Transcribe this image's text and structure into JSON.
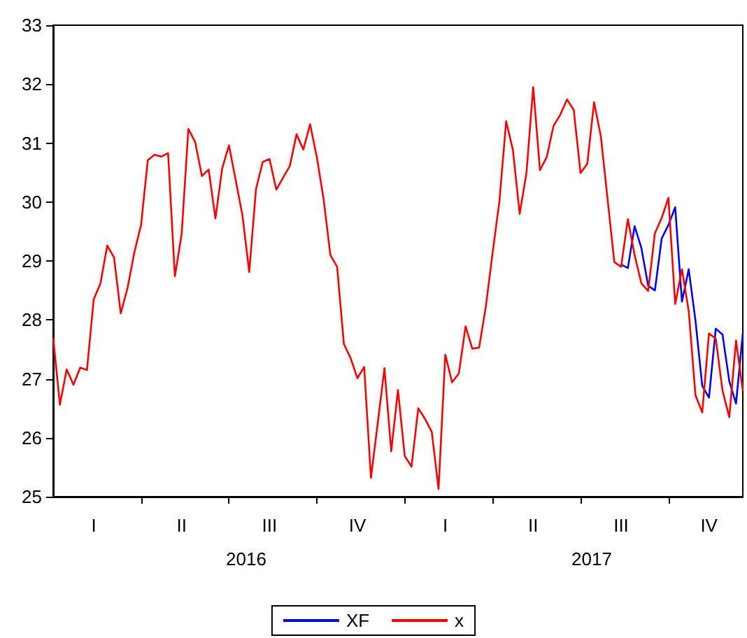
{
  "chart_data": {
    "type": "line",
    "categories": [
      null,
      null,
      null,
      null,
      null,
      null,
      "I",
      null,
      null,
      null,
      null,
      null,
      null,
      null,
      null,
      null,
      null,
      null,
      null,
      "II",
      null,
      null,
      null,
      null,
      null,
      null,
      null,
      null,
      null,
      null,
      null,
      null,
      "III",
      null,
      null,
      null,
      null,
      null,
      null,
      null,
      null,
      null,
      null,
      null,
      null,
      "IV",
      null,
      null,
      null,
      null,
      null,
      null,
      null,
      null,
      null,
      null,
      null,
      null,
      "I",
      null,
      null,
      null,
      null,
      null,
      null,
      null,
      null,
      null,
      null,
      null,
      null,
      "II",
      null,
      null,
      null,
      null,
      null,
      null,
      null,
      null,
      null,
      null,
      null,
      null,
      "III",
      null,
      null,
      null,
      null,
      null,
      null,
      null,
      null,
      null,
      null,
      null,
      null,
      "IV",
      null,
      null,
      null,
      null,
      null
    ],
    "series": [
      {
        "name": "XF",
        "color": "#0000ff",
        "values": [
          null,
          null,
          null,
          null,
          null,
          null,
          null,
          null,
          null,
          null,
          null,
          null,
          null,
          null,
          null,
          null,
          null,
          null,
          null,
          null,
          null,
          null,
          null,
          null,
          null,
          null,
          null,
          null,
          null,
          null,
          null,
          null,
          null,
          null,
          null,
          null,
          null,
          null,
          null,
          null,
          null,
          null,
          null,
          null,
          null,
          null,
          null,
          null,
          null,
          null,
          null,
          null,
          null,
          null,
          null,
          null,
          null,
          null,
          null,
          null,
          null,
          null,
          null,
          null,
          null,
          null,
          null,
          null,
          null,
          null,
          null,
          null,
          null,
          null,
          null,
          null,
          null,
          null,
          null,
          null,
          null,
          null,
          null,
          null,
          28.94,
          28.88,
          29.59,
          29.22,
          28.58,
          28.5,
          29.38,
          29.61,
          29.91,
          28.31,
          28.86,
          27.99,
          26.88,
          26.68,
          27.85,
          27.75,
          26.96,
          26.58,
          27.77
        ]
      },
      {
        "name": "x",
        "color": "#ff0000",
        "values": [
          27.7,
          26.56,
          27.16,
          26.9,
          27.19,
          27.15,
          28.35,
          28.62,
          29.26,
          29.06,
          28.11,
          28.54,
          29.14,
          29.61,
          30.71,
          30.8,
          30.77,
          30.83,
          28.74,
          29.45,
          31.24,
          31.02,
          30.44,
          30.55,
          29.72,
          30.57,
          30.96,
          30.37,
          29.77,
          28.81,
          30.22,
          30.68,
          30.73,
          30.21,
          30.41,
          30.61,
          31.15,
          30.89,
          31.32,
          30.76,
          30.05,
          29.1,
          28.9,
          27.59,
          27.35,
          27.01,
          27.2,
          25.32,
          26.24,
          27.18,
          25.77,
          26.81,
          25.69,
          25.51,
          26.5,
          26.32,
          26.1,
          25.13,
          27.41,
          26.94,
          27.09,
          27.89,
          27.51,
          27.53,
          28.23,
          29.14,
          30.01,
          31.37,
          30.88,
          29.8,
          30.49,
          31.95,
          30.54,
          30.76,
          31.29,
          31.48,
          31.74,
          31.56,
          30.49,
          30.65,
          31.69,
          31.12,
          30.05,
          28.98,
          28.9,
          29.71,
          29.1,
          28.62,
          28.49,
          29.47,
          29.73,
          30.07,
          28.27,
          28.86,
          28.15,
          26.72,
          26.43,
          27.77,
          27.68,
          26.8,
          26.35,
          27.65,
          26.8
        ]
      }
    ],
    "annotations": [
      "2016",
      "2017"
    ],
    "ylim": [
      25,
      33
    ],
    "yticks": [
      25,
      26,
      27,
      28,
      29,
      30,
      31,
      32,
      33
    ],
    "grid": false,
    "legend": "bottom",
    "marker": "none"
  }
}
